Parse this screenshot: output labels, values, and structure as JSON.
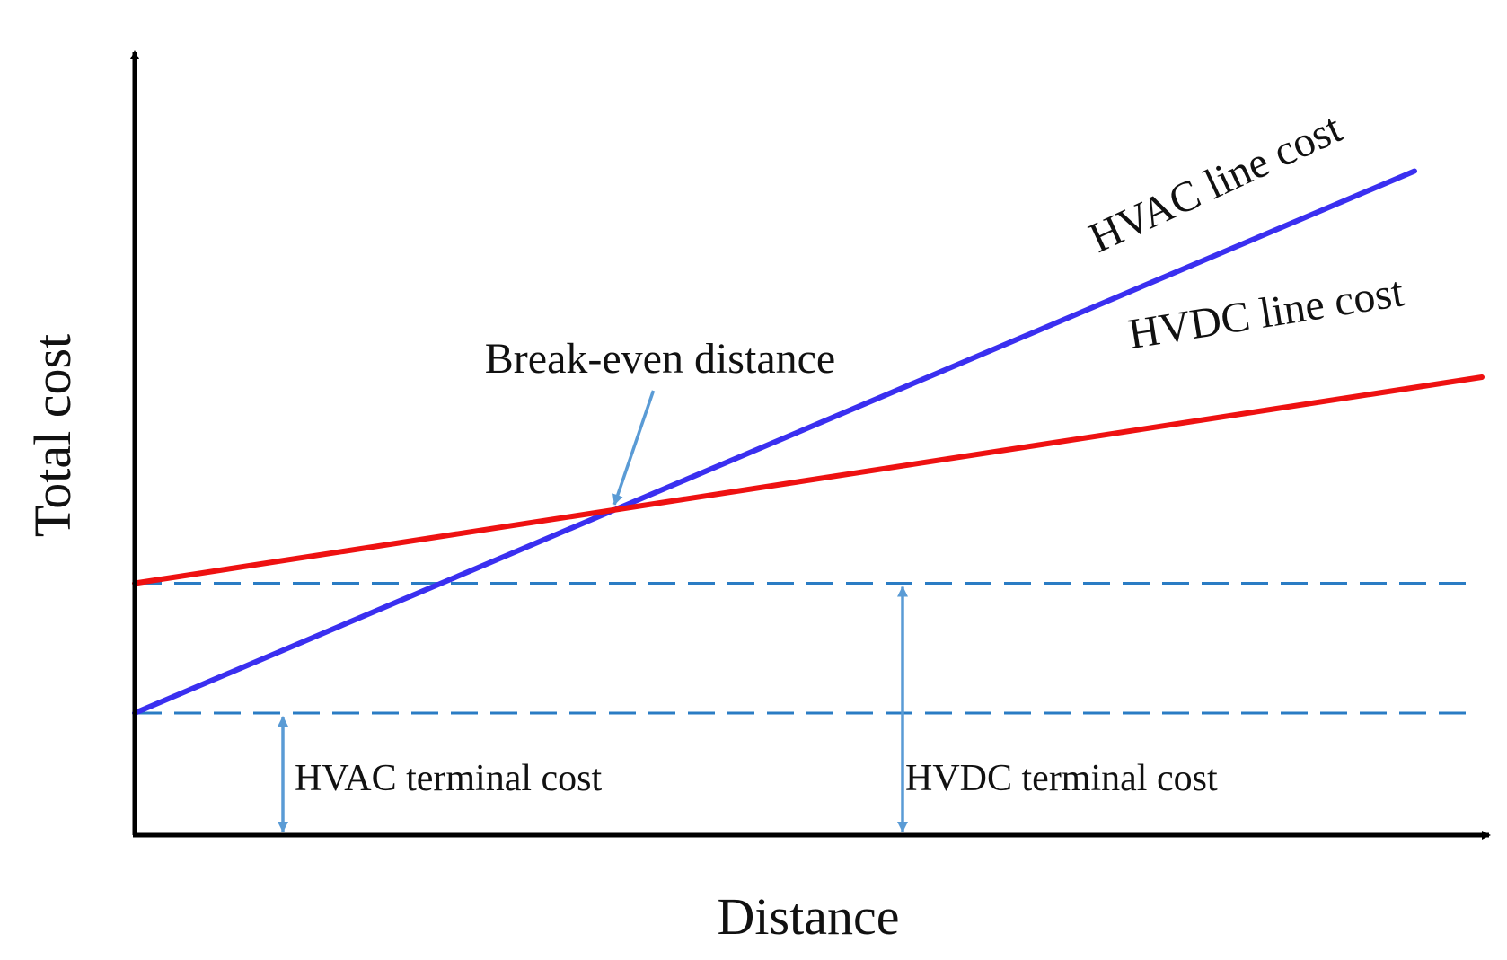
{
  "chart_data": {
    "type": "line",
    "xlabel": "Distance",
    "ylabel": "Total cost",
    "xlim": [
      0,
      10
    ],
    "ylim": [
      0,
      10
    ],
    "grid": false,
    "legend": "none",
    "series": [
      {
        "name": "HVAC line cost",
        "color": "#3a2ff0",
        "x": [
          0,
          9.5
        ],
        "y": [
          1.6,
          8.7
        ]
      },
      {
        "name": "HVDC line cost",
        "color": "#ee1111",
        "x": [
          0,
          10
        ],
        "y": [
          3.3,
          6.0
        ]
      }
    ],
    "reference_lines": [
      {
        "key": "hvdc_terminal",
        "y": 3.3,
        "color": "#2a7cc4",
        "style": "dashed"
      },
      {
        "key": "hvac_terminal",
        "y": 1.6,
        "color": "#2a7cc4",
        "style": "dashed"
      }
    ],
    "annotations": {
      "hvac_terminal": {
        "text": "HVAC terminal cost",
        "x": 1.1,
        "y_from": 0,
        "y_to": 1.6
      },
      "hvdc_terminal": {
        "text": "HVDC terminal cost",
        "x": 5.7,
        "y_from": 0,
        "y_to": 3.3
      },
      "break_even": {
        "text": "Break-even distance",
        "x": 3.85
      }
    },
    "arrow_color": "#5a9bd5"
  }
}
